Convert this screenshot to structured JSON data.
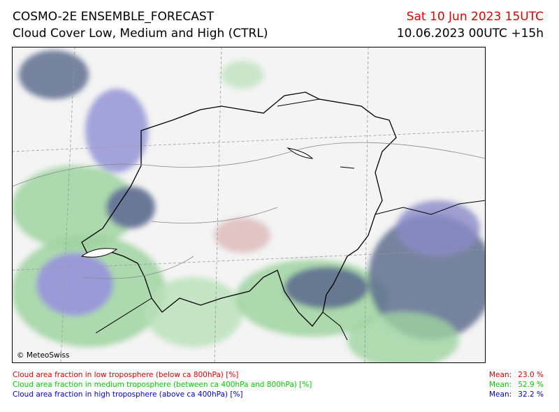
{
  "header": {
    "title": "COSMO-2E ENSEMBLE_FORECAST",
    "subtitle": "Cloud Cover Low, Medium and High (CTRL)",
    "valid_time": "Sat 10 Jun 2023 15UTC",
    "run_time": "10.06.2023 00UTC +15h"
  },
  "map": {
    "credit": "© MeteoSwiss"
  },
  "legend": [
    {
      "label": "Cloud area fraction in low troposphere (below ca 800hPa) [%]",
      "mean_label": "Mean:",
      "mean": "23.0 %",
      "color": "#dd0000"
    },
    {
      "label": "Cloud area fraction in medium troposphere (between ca 400hPa and 800hPa) [%]",
      "mean_label": "Mean:",
      "mean": "52.9 %",
      "color": "#00cc00"
    },
    {
      "label": "Cloud area fraction in high troposphere (above ca 400hPa) [%]",
      "mean_label": "Mean:",
      "mean": "32.2 %",
      "color": "#0000cc"
    }
  ]
}
